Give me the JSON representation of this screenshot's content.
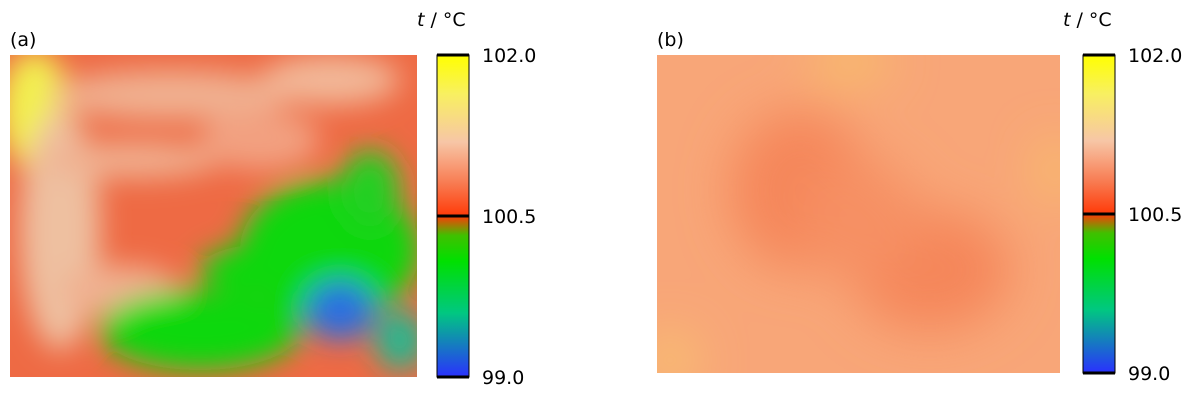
{
  "panels": [
    {
      "label": "(a)",
      "colorbar": {
        "symbol": "t",
        "unit": "/ °C",
        "lim": [
          99,
          102
        ],
        "ticks": [
          {
            "value": 102,
            "label": "102.0"
          },
          {
            "value": 100.5,
            "label": "100.5"
          },
          {
            "value": 99,
            "label": "99.0"
          }
        ]
      }
    },
    {
      "label": "(b)",
      "colorbar": {
        "symbol": "t",
        "unit": "/ °C",
        "lim": [
          99,
          102
        ],
        "ticks": [
          {
            "value": 102,
            "label": "102.0"
          },
          {
            "value": 100.5,
            "label": "100.5"
          },
          {
            "value": 99,
            "label": "99.0"
          }
        ]
      }
    }
  ]
}
